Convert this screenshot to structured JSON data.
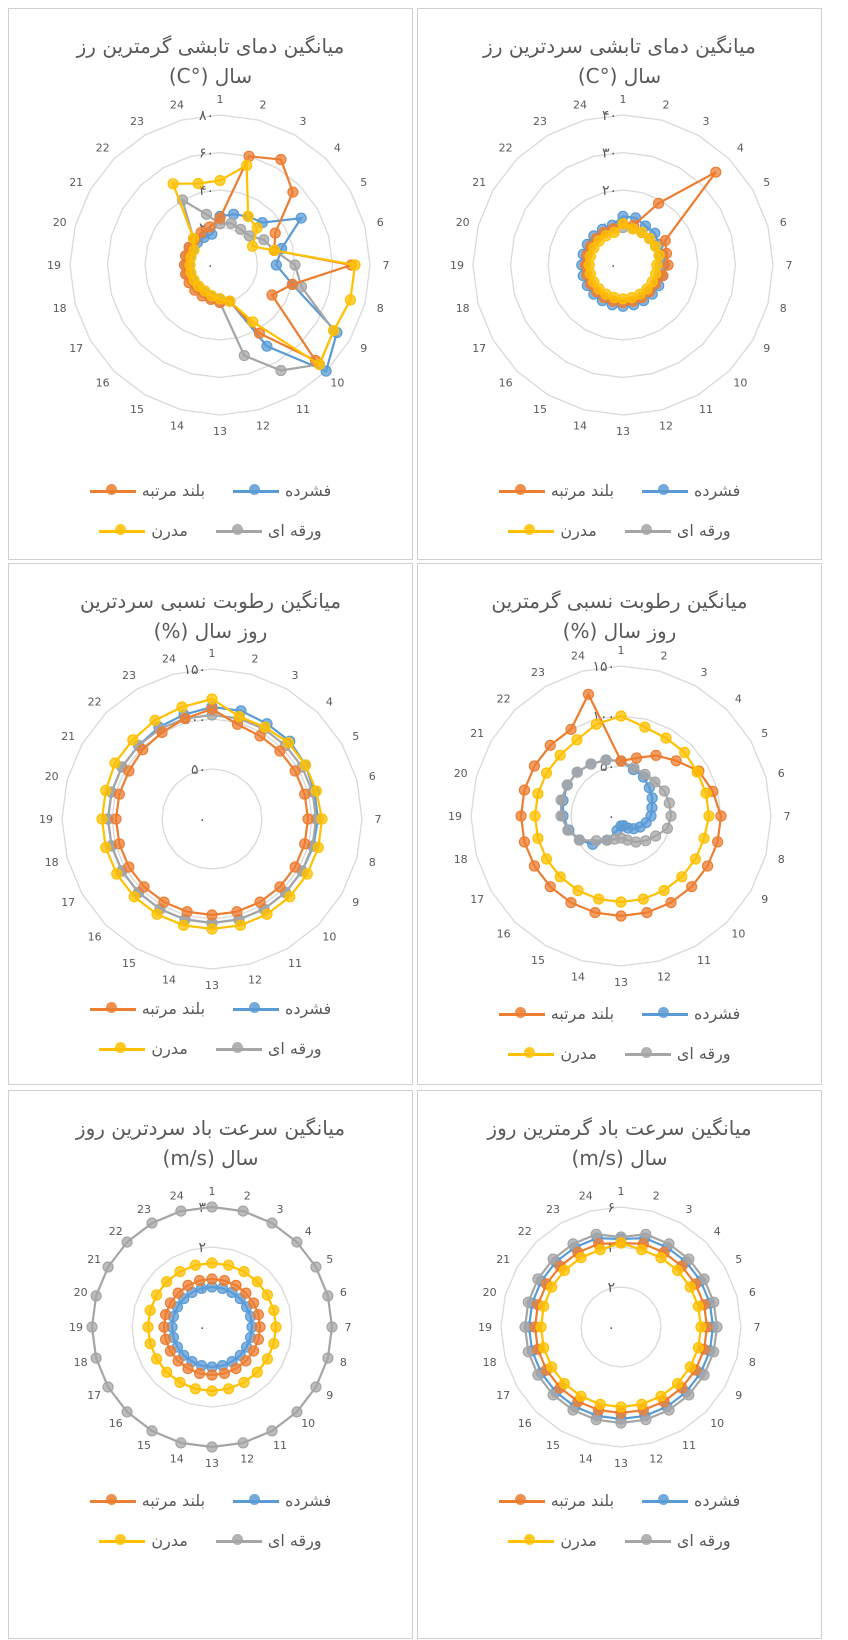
{
  "colors": {
    "fashorde": "#5B9BD5",
    "boland": "#ED7D31",
    "varaghe": "#A5A5A5",
    "modern": "#FFC000",
    "grid": "#D9D9D9",
    "text": "#595959"
  },
  "legend_labels": [
    "فشرده",
    "بلند مرتبه",
    "ورقه ای",
    "مدرن"
  ],
  "chart_data": [
    {
      "type": "radar",
      "title": "میانگین دمای تابشی گرمترین رز\nسال (°C)",
      "categories": [
        "1",
        "2",
        "3",
        "4",
        "5",
        "6",
        "7",
        "8",
        "9",
        "10",
        "11",
        "12",
        "13",
        "14",
        "15",
        "16",
        "17",
        "18",
        "19",
        "20",
        "21",
        "22",
        "23",
        "24"
      ],
      "rmax": 80,
      "ticks": [
        "۰",
        "۲۰",
        "۴۰",
        "۶۰",
        "۸۰"
      ],
      "series": [
        {
          "name": "فشرده",
          "values": [
            26,
            28,
            30,
            32,
            50,
            34,
            30,
            40,
            72,
            80,
            50,
            20,
            18,
            17,
            17,
            17,
            17,
            17,
            17,
            17,
            17,
            17,
            17,
            17
          ]
        },
        {
          "name": "بلند مرتبه",
          "values": [
            25,
            60,
            65,
            55,
            34,
            30,
            70,
            40,
            32,
            72,
            42,
            20,
            20,
            19,
            19,
            19,
            19,
            19,
            19,
            19,
            19,
            19,
            20,
            21
          ]
        },
        {
          "name": "ورقه ای",
          "values": [
            22,
            23,
            22,
            22,
            27,
            30,
            40,
            45,
            70,
            75,
            65,
            50,
            20,
            18,
            17,
            17,
            17,
            18,
            18,
            19,
            19,
            20,
            40,
            28
          ]
        },
        {
          "name": "مدرن",
          "values": [
            45,
            55,
            30,
            28,
            20,
            30,
            72,
            72,
            70,
            75,
            35,
            20,
            18,
            17,
            16,
            16,
            16,
            16,
            16,
            16,
            16,
            20,
            50,
            45
          ]
        }
      ]
    },
    {
      "type": "radar",
      "title": "میانگین دمای تابشی سردترین رز\nسال (°C)",
      "categories": [
        "1",
        "2",
        "3",
        "4",
        "5",
        "6",
        "7",
        "8",
        "9",
        "10",
        "11",
        "12",
        "13",
        "14",
        "15",
        "16",
        "17",
        "18",
        "19",
        "20",
        "21",
        "22",
        "23",
        "24"
      ],
      "rmax": 40,
      "ticks": [
        "۰",
        "۱۰",
        "۲۰",
        "۳۰",
        "۴۰"
      ],
      "series": [
        {
          "name": "فشرده",
          "values": [
            13,
            13,
            12,
            12,
            11,
            11,
            11,
            11,
            11,
            11,
            11,
            11,
            11,
            11,
            11,
            11,
            11,
            11,
            11,
            11,
            11,
            11,
            11,
            11
          ]
        },
        {
          "name": "بلند مرتبه",
          "values": [
            11,
            11,
            19,
            35,
            13,
            12,
            12,
            11,
            10,
            10,
            10,
            10,
            10,
            10,
            10,
            10,
            10,
            10,
            10,
            10,
            10,
            10,
            10,
            10
          ]
        },
        {
          "name": "ورقه ای",
          "values": [
            10,
            10,
            10,
            10,
            10,
            10,
            10,
            10,
            10,
            10,
            10,
            10,
            10,
            10,
            10,
            10,
            10,
            10,
            10,
            10,
            10,
            10,
            10,
            10
          ]
        },
        {
          "name": "مدرن",
          "values": [
            11,
            10,
            10,
            10,
            10,
            10,
            9,
            9,
            9,
            9,
            9,
            9,
            9,
            9,
            9,
            9,
            9,
            9,
            9,
            9,
            9,
            9,
            9,
            9
          ]
        }
      ]
    },
    {
      "type": "radar",
      "title": "میانگین رطوبت نسبی سردترین\nروز سال (%)",
      "categories": [
        "1",
        "2",
        "3",
        "4",
        "5",
        "6",
        "7",
        "8",
        "9",
        "10",
        "11",
        "12",
        "13",
        "14",
        "15",
        "16",
        "17",
        "18",
        "19",
        "20",
        "21",
        "22",
        "23",
        "24"
      ],
      "rmax": 150,
      "ticks": [
        "۰",
        "۵۰",
        "۱۰۰",
        "۱۵۰"
      ],
      "series": [
        {
          "name": "فشرده",
          "values": [
            112,
            112,
            110,
            110,
            108,
            106,
            106,
            105,
            104,
            104,
            104,
            104,
            104,
            104,
            104,
            104,
            104,
            104,
            104,
            104,
            104,
            104,
            106,
            108
          ]
        },
        {
          "name": "بلند مرتبه",
          "values": [
            110,
            98,
            96,
            96,
            96,
            96,
            96,
            96,
            96,
            96,
            96,
            96,
            96,
            96,
            96,
            96,
            96,
            96,
            96,
            96,
            96,
            98,
            100,
            104
          ]
        },
        {
          "name": "ورقه ای",
          "values": [
            104,
            104,
            104,
            104,
            104,
            104,
            104,
            104,
            104,
            104,
            104,
            104,
            104,
            104,
            104,
            104,
            104,
            104,
            104,
            104,
            104,
            104,
            104,
            104
          ]
        },
        {
          "name": "مدرن",
          "values": [
            120,
            106,
            106,
            108,
            108,
            108,
            110,
            110,
            110,
            110,
            110,
            110,
            110,
            110,
            110,
            110,
            110,
            110,
            110,
            110,
            112,
            112,
            114,
            116
          ]
        }
      ]
    },
    {
      "type": "radar",
      "title": "میانگین رطوبت نسبی گرمترین\nروز سال (%)",
      "categories": [
        "1",
        "2",
        "3",
        "4",
        "5",
        "6",
        "7",
        "8",
        "9",
        "10",
        "11",
        "12",
        "13",
        "14",
        "15",
        "16",
        "17",
        "18",
        "19",
        "20",
        "21",
        "22",
        "23",
        "24"
      ],
      "rmax": 150,
      "ticks": [
        "۰",
        "۵۰",
        "۱۰۰",
        "۱۵۰"
      ],
      "series": [
        {
          "name": "فشرده",
          "values": [
            55,
            48,
            45,
            40,
            36,
            32,
            30,
            26,
            22,
            18,
            14,
            10,
            10,
            15,
            28,
            40,
            48,
            54,
            58,
            60,
            62,
            62,
            60,
            58
          ]
        },
        {
          "name": "بلند مرتبه",
          "values": [
            55,
            60,
            70,
            78,
            90,
            95,
            100,
            100,
            100,
            100,
            100,
            100,
            100,
            100,
            100,
            100,
            100,
            100,
            100,
            100,
            100,
            100,
            100,
            126
          ]
        },
        {
          "name": "ورقه ای",
          "values": [
            55,
            50,
            48,
            48,
            50,
            50,
            50,
            48,
            40,
            35,
            30,
            25,
            22,
            24,
            28,
            35,
            48,
            55,
            60,
            62,
            62,
            62,
            60,
            58
          ]
        },
        {
          "name": "مدرن",
          "values": [
            100,
            92,
            90,
            90,
            88,
            88,
            88,
            86,
            86,
            86,
            86,
            86,
            86,
            86,
            86,
            86,
            86,
            86,
            86,
            86,
            86,
            86,
            88,
            95
          ]
        }
      ]
    },
    {
      "type": "radar",
      "title": "میانگین سرعت باد سردترین روز\nسال (m/s)",
      "categories": [
        "1",
        "2",
        "3",
        "4",
        "5",
        "6",
        "7",
        "8",
        "9",
        "10",
        "11",
        "12",
        "13",
        "14",
        "15",
        "16",
        "17",
        "18",
        "19",
        "20",
        "21",
        "22",
        "23",
        "24"
      ],
      "rmax": 3,
      "ticks": [
        "۰",
        "۱",
        "۲",
        "۳"
      ],
      "series": [
        {
          "name": "فشرده",
          "values": [
            1.0,
            1.0,
            1.0,
            1.0,
            1.0,
            1.0,
            1.0,
            1.0,
            1.0,
            1.0,
            1.0,
            1.0,
            1.0,
            1.0,
            1.0,
            1.0,
            1.0,
            1.0,
            1.0,
            1.0,
            1.0,
            1.0,
            1.0,
            1.0
          ]
        },
        {
          "name": "بلند مرتبه",
          "values": [
            1.2,
            1.2,
            1.2,
            1.2,
            1.2,
            1.2,
            1.2,
            1.2,
            1.2,
            1.2,
            1.2,
            1.2,
            1.2,
            1.2,
            1.2,
            1.2,
            1.2,
            1.2,
            1.2,
            1.2,
            1.2,
            1.2,
            1.2,
            1.2
          ]
        },
        {
          "name": "ورقه ای",
          "values": [
            3,
            3,
            3,
            3,
            3,
            3,
            3,
            3,
            3,
            3,
            3,
            3,
            3,
            3,
            3,
            3,
            3,
            3,
            3,
            3,
            3,
            3,
            3,
            3
          ]
        },
        {
          "name": "مدرن",
          "values": [
            1.6,
            1.6,
            1.6,
            1.6,
            1.6,
            1.6,
            1.6,
            1.6,
            1.6,
            1.6,
            1.6,
            1.6,
            1.6,
            1.6,
            1.6,
            1.6,
            1.6,
            1.6,
            1.6,
            1.6,
            1.6,
            1.6,
            1.6,
            1.6
          ]
        }
      ]
    },
    {
      "type": "radar",
      "title": "میانگین سرعت باد گرمترین روز\nسال (m/s)",
      "categories": [
        "1",
        "2",
        "3",
        "4",
        "5",
        "6",
        "7",
        "8",
        "9",
        "10",
        "11",
        "12",
        "13",
        "14",
        "15",
        "16",
        "17",
        "18",
        "19",
        "20",
        "21",
        "22",
        "23",
        "24"
      ],
      "rmax": 6,
      "ticks": [
        "۰",
        "۲",
        "۴",
        "۶"
      ],
      "series": [
        {
          "name": "فشرده",
          "values": [
            4.4,
            4.6,
            4.6,
            4.6,
            4.6,
            4.6,
            4.6,
            4.6,
            4.6,
            4.6,
            4.6,
            4.6,
            4.6,
            4.6,
            4.6,
            4.6,
            4.6,
            4.6,
            4.6,
            4.6,
            4.6,
            4.6,
            4.6,
            4.6
          ]
        },
        {
          "name": "بلند مرتبه",
          "values": [
            4.2,
            4.3,
            4.3,
            4.3,
            4.3,
            4.3,
            4.3,
            4.3,
            4.3,
            4.3,
            4.3,
            4.3,
            4.3,
            4.3,
            4.3,
            4.3,
            4.3,
            4.3,
            4.3,
            4.3,
            4.3,
            4.3,
            4.3,
            4.3
          ]
        },
        {
          "name": "ورقه ای",
          "values": [
            4.5,
            4.8,
            4.8,
            4.8,
            4.8,
            4.8,
            4.8,
            4.8,
            4.8,
            4.8,
            4.8,
            4.8,
            4.8,
            4.8,
            4.8,
            4.8,
            4.8,
            4.8,
            4.8,
            4.8,
            4.8,
            4.8,
            4.8,
            4.8
          ]
        },
        {
          "name": "مدرن",
          "values": [
            4.2,
            4.0,
            4.0,
            4.0,
            4.0,
            4.0,
            4.0,
            4.0,
            4.0,
            4.0,
            4.0,
            4.0,
            4.0,
            4.0,
            4.0,
            4.0,
            4.0,
            4.0,
            4.0,
            4.0,
            4.0,
            4.0,
            4.0,
            4.0
          ]
        }
      ]
    }
  ]
}
